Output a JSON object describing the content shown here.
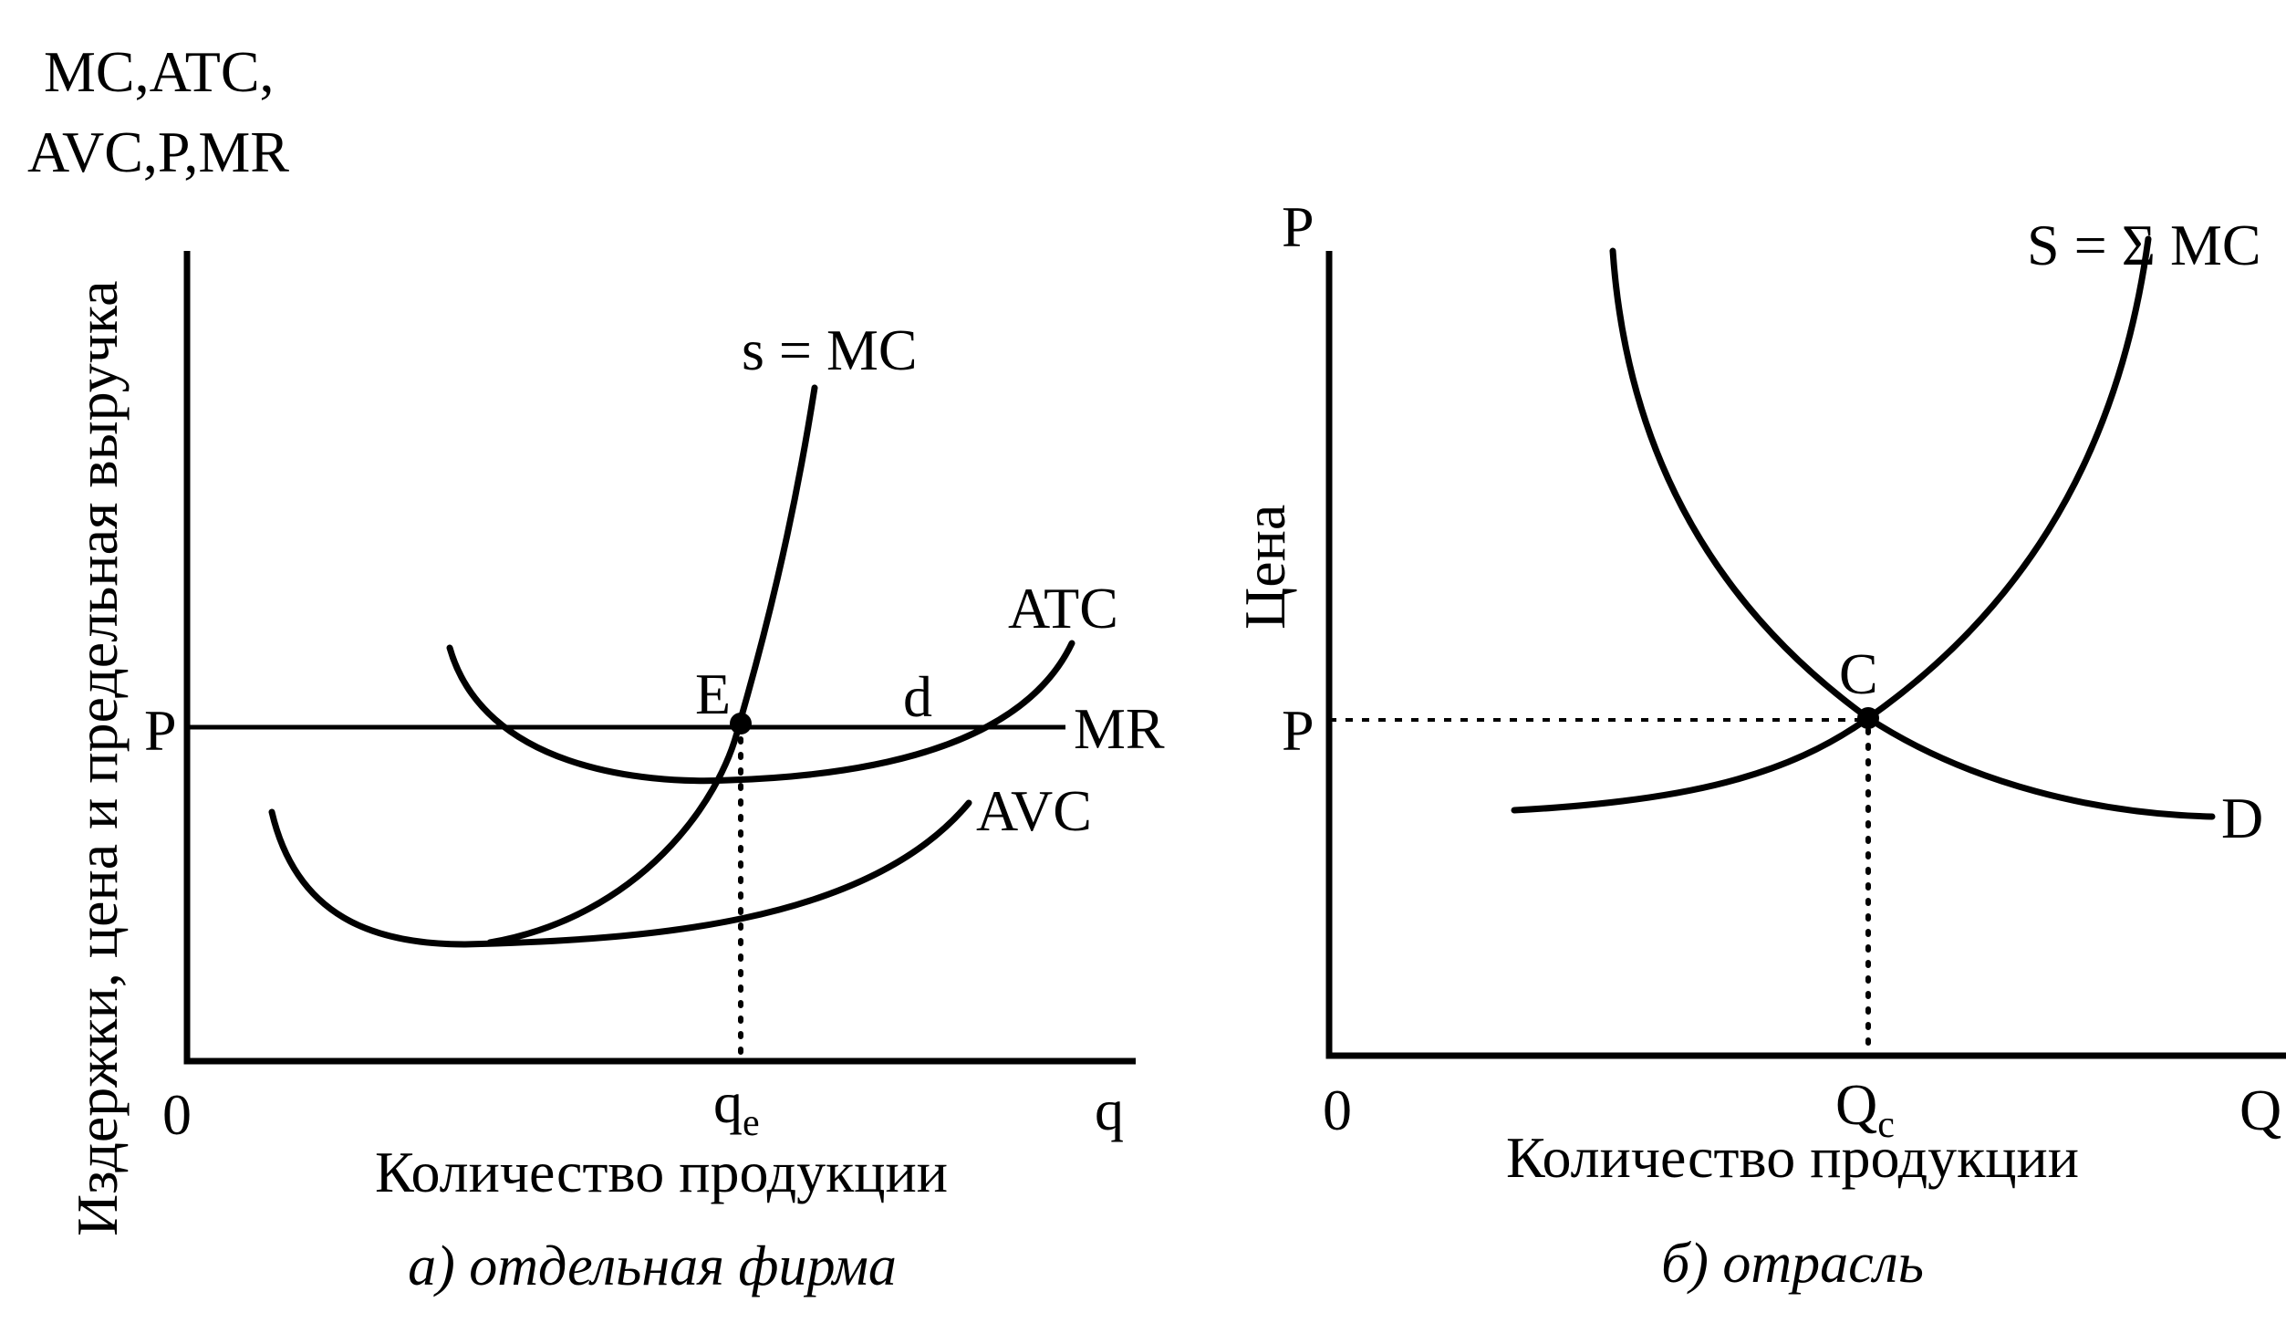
{
  "left": {
    "ylabel_top_line1": "MC,ATC,",
    "ylabel_top_line2": "AVC,P,MR",
    "ylabel_rotated": "Издержки, цена и предельная выручка",
    "price_label": "P",
    "origin_label": "0",
    "qe_main": "q",
    "qe_sub": "e",
    "x_end_label": "q",
    "xlabel": "Количество продукции",
    "caption": "а) отдельная фирма",
    "curves": {
      "mc": "s = MC",
      "atc": "ATC",
      "avc": "AVC",
      "mr": "MR",
      "d": "d"
    },
    "point_label": "E"
  },
  "right": {
    "y_end_label": "P",
    "ylabel_rotated": "Цена",
    "price_label": "P",
    "origin_label": "0",
    "qc_main": "Q",
    "qc_sub": "c",
    "x_end_label": "Q",
    "xlabel": "Количество продукции",
    "caption": "б) отрасль",
    "curves": {
      "supply": "S = Σ MC",
      "demand": "D"
    },
    "point_label": "C"
  }
}
